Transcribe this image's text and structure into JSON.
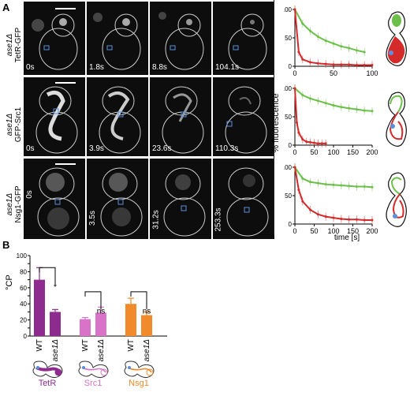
{
  "panel_a": {
    "letter": "A",
    "rows": [
      {
        "strain": "ase1Δ",
        "reporter": "TetR-GFP",
        "times": [
          "0s",
          "1.8s",
          "8.8s",
          "104.1s"
        ]
      },
      {
        "strain": "ase1Δ",
        "reporter": "GFP-Src1",
        "times": [
          "0s",
          "3.9s",
          "23.6s",
          "110.3s"
        ]
      },
      {
        "strain": "ase1Δ",
        "reporter": "Nsg1-GFP",
        "times": [
          "0s",
          "3.5s",
          "31.2s",
          "253.3s"
        ]
      }
    ],
    "y_label": "% fluorescence",
    "x_label": "time [s]"
  },
  "panel_b": {
    "letter": "B",
    "y_label": "°CP",
    "groups": [
      "TetR",
      "Src1",
      "Nsg1"
    ],
    "group_colors": [
      "#8e2b8f",
      "#d873c8",
      "#f08a2a"
    ],
    "bar_labels": [
      "WT",
      "ase1Δ"
    ],
    "significance": [
      "*",
      "ns",
      "ns"
    ]
  },
  "colors": {
    "green": "#6cc04a",
    "red": "#d42a2a",
    "blue": "#5a8fdc"
  },
  "chart_data": [
    {
      "type": "line",
      "xlim": [
        0,
        100
      ],
      "ylim": [
        0,
        100
      ],
      "x_ticks": [
        0,
        50,
        100
      ],
      "y_ticks": [
        0,
        50,
        100
      ],
      "series": [
        {
          "color": "#6cc04a",
          "x": [
            0,
            10,
            20,
            30,
            40,
            50,
            60,
            70,
            80,
            90
          ],
          "y": [
            100,
            75,
            62,
            52,
            45,
            40,
            35,
            32,
            28,
            25
          ]
        },
        {
          "color": "#d42a2a",
          "x": [
            0,
            5,
            10,
            20,
            30,
            40,
            50,
            60,
            70,
            80,
            90,
            100
          ],
          "y": [
            100,
            25,
            12,
            7,
            5,
            4,
            3,
            3,
            3,
            2,
            2,
            2
          ]
        }
      ]
    },
    {
      "type": "line",
      "xlim": [
        0,
        200
      ],
      "ylim": [
        0,
        100
      ],
      "x_ticks": [
        0,
        50,
        100,
        150,
        200
      ],
      "y_ticks": [
        0,
        50,
        100
      ],
      "series": [
        {
          "color": "#6cc04a",
          "x": [
            0,
            20,
            40,
            60,
            80,
            100,
            120,
            140,
            160,
            180,
            200
          ],
          "y": [
            100,
            88,
            82,
            78,
            74,
            70,
            67,
            65,
            63,
            61,
            60
          ]
        },
        {
          "color": "#d42a2a",
          "x": [
            0,
            5,
            10,
            20,
            30,
            40,
            50,
            60,
            70,
            80
          ],
          "y": [
            100,
            40,
            22,
            10,
            6,
            5,
            4,
            3,
            3,
            3
          ]
        }
      ]
    },
    {
      "type": "line",
      "xlim": [
        0,
        200
      ],
      "ylim": [
        0,
        100
      ],
      "x_ticks": [
        0,
        50,
        100,
        150,
        200
      ],
      "y_ticks": [
        0,
        50,
        100
      ],
      "series": [
        {
          "color": "#6cc04a",
          "x": [
            0,
            20,
            40,
            60,
            80,
            100,
            120,
            140,
            160,
            180,
            200
          ],
          "y": [
            100,
            80,
            74,
            72,
            70,
            69,
            68,
            67,
            66,
            66,
            65
          ]
        },
        {
          "color": "#d42a2a",
          "x": [
            0,
            10,
            20,
            40,
            60,
            80,
            100,
            120,
            140,
            160,
            180,
            200
          ],
          "y": [
            100,
            60,
            40,
            25,
            17,
            13,
            11,
            9,
            8,
            8,
            7,
            7
          ]
        }
      ]
    },
    {
      "type": "bar",
      "categories": [
        "WT",
        "ase1Δ",
        "WT",
        "ase1Δ",
        "WT",
        "ase1Δ"
      ],
      "values": [
        70,
        30,
        21,
        29,
        40,
        26
      ],
      "errors": [
        15,
        3,
        2,
        7,
        7,
        4
      ],
      "ylim": [
        0,
        100
      ],
      "y_ticks": [
        0,
        10,
        20,
        30,
        40,
        50,
        60,
        70,
        80,
        90,
        100
      ]
    }
  ]
}
